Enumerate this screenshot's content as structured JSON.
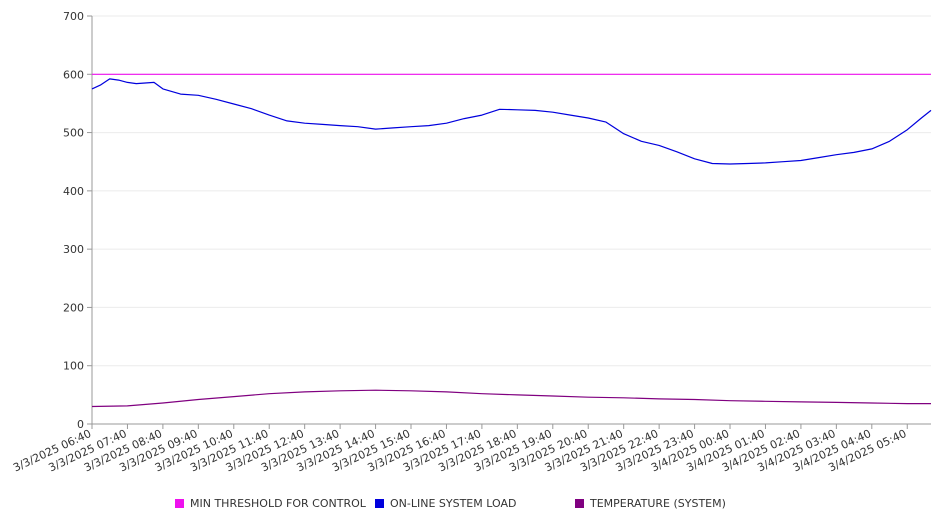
{
  "chart_data": {
    "type": "line",
    "ylim": [
      0,
      700
    ],
    "y_ticks": [
      "0",
      "100",
      "200",
      "300",
      "400",
      "500",
      "600",
      "700"
    ],
    "x_range_hours": [
      0,
      23.67
    ],
    "x_tick_labels": [
      "3/3/2025 06:40",
      "3/3/2025 07:40",
      "3/3/2025 08:40",
      "3/3/2025 09:40",
      "3/3/2025 10:40",
      "3/3/2025 11:40",
      "3/3/2025 12:40",
      "3/3/2025 13:40",
      "3/3/2025 14:40",
      "3/3/2025 15:40",
      "3/3/2025 16:40",
      "3/3/2025 17:40",
      "3/3/2025 18:40",
      "3/3/2025 19:40",
      "3/3/2025 20:40",
      "3/3/2025 21:40",
      "3/3/2025 22:40",
      "3/3/2025 23:40",
      "3/4/2025 00:40",
      "3/4/2025 01:40",
      "3/4/2025 02:40",
      "3/4/2025 03:40",
      "3/4/2025 04:40",
      "3/4/2025 05:40"
    ],
    "grid": true,
    "legend_position": "bottom",
    "series": [
      {
        "name": "MIN THRESHOLD FOR CONTROL",
        "color": "#ee11ee",
        "x": [
          0,
          23.67
        ],
        "values": [
          600,
          600
        ]
      },
      {
        "name": "ON-LINE SYSTEM LOAD",
        "color": "#0000dd",
        "x": [
          0,
          0.25,
          0.5,
          0.75,
          1,
          1.25,
          1.5,
          1.75,
          2,
          2.5,
          3,
          3.5,
          4,
          4.5,
          5,
          5.5,
          6,
          6.5,
          7,
          7.5,
          8,
          8.5,
          9,
          9.5,
          10,
          10.5,
          11,
          11.5,
          12,
          12.5,
          13,
          13.5,
          14,
          14.5,
          15,
          15.5,
          16,
          16.5,
          17,
          17.5,
          18,
          18.5,
          19,
          19.5,
          20,
          20.5,
          21,
          21.5,
          22,
          22.5,
          23,
          23.4,
          23.67
        ],
        "values": [
          575,
          582,
          592,
          590,
          586,
          584,
          585,
          586,
          575,
          566,
          564,
          557,
          549,
          541,
          530,
          520,
          516,
          514,
          512,
          510,
          506,
          508,
          510,
          512,
          516,
          524,
          530,
          540,
          539,
          538,
          535,
          530,
          525,
          518,
          498,
          485,
          478,
          467,
          455,
          447,
          446,
          447,
          448,
          450,
          452,
          457,
          462,
          466,
          472,
          485,
          505,
          525,
          538
        ]
      },
      {
        "name": "TEMPERATURE (SYSTEM)",
        "color": "#800080",
        "x": [
          0,
          1,
          2,
          3,
          4,
          5,
          6,
          7,
          8,
          9,
          10,
          11,
          12,
          13,
          14,
          15,
          16,
          17,
          18,
          19,
          20,
          21,
          22,
          23,
          23.67
        ],
        "values": [
          30,
          31,
          36,
          42,
          47,
          52,
          55,
          57,
          58,
          57,
          55,
          52,
          50,
          48,
          46,
          45,
          43,
          42,
          40,
          39,
          38,
          37,
          36,
          35,
          35
        ]
      }
    ]
  }
}
